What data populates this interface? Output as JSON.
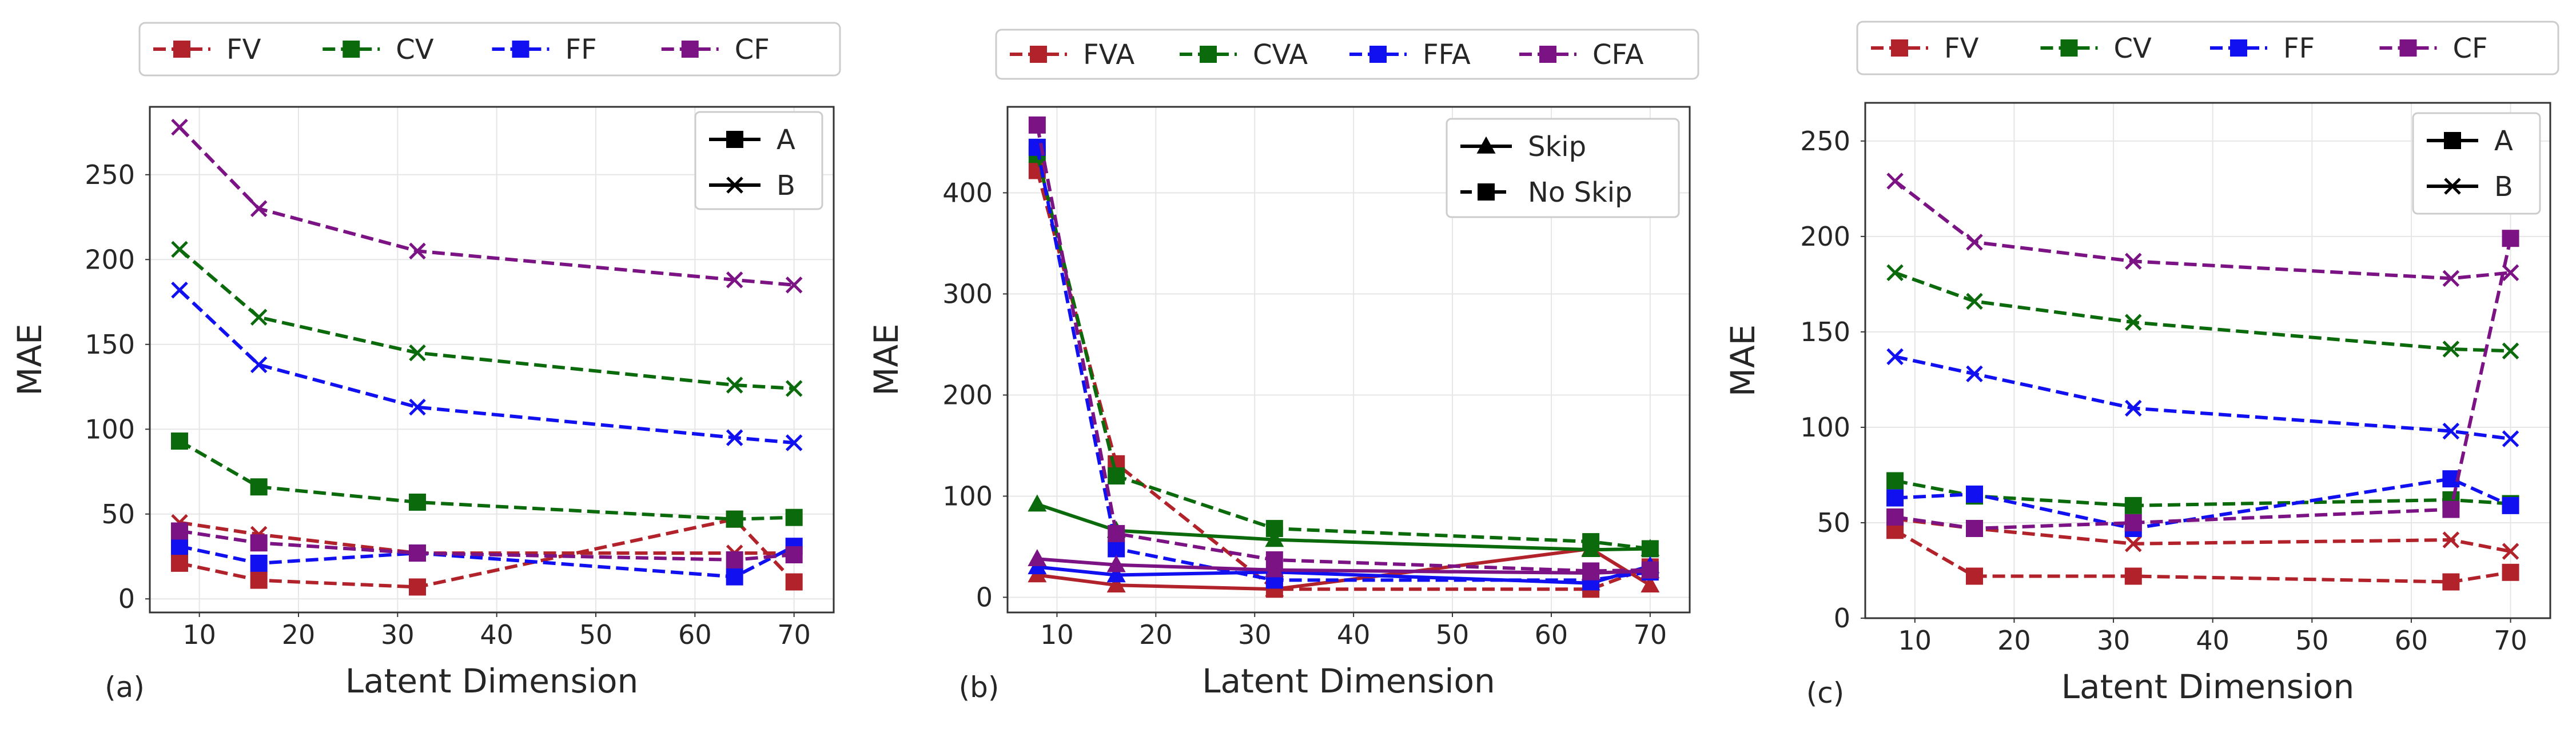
{
  "colors": {
    "FV": "#b2222a",
    "CV": "#0b6a0b",
    "FF": "#1010f0",
    "CF": "#7b1385",
    "frame": "#333333",
    "grid": "#e6e6e6",
    "text": "#262626"
  },
  "chart_data": [
    {
      "type": "line",
      "panel_label": "(a)",
      "xlabel": "Latent Dimension",
      "ylabel": "MAE",
      "xlim": [
        5,
        74
      ],
      "ylim": [
        -8,
        290
      ],
      "xticks": [
        10,
        20,
        30,
        40,
        50,
        60,
        70
      ],
      "yticks": [
        0,
        50,
        100,
        150,
        200,
        250
      ],
      "grid": true,
      "top_legend": [
        {
          "label": "FV",
          "color_key": "FV"
        },
        {
          "label": "CV",
          "color_key": "CV"
        },
        {
          "label": "FF",
          "color_key": "FF"
        },
        {
          "label": "CF",
          "color_key": "CF"
        }
      ],
      "style_legend": {
        "position": "upper-right",
        "entries": [
          {
            "label": "A",
            "marker": "square"
          },
          {
            "label": "B",
            "marker": "x"
          }
        ]
      },
      "x": [
        8,
        16,
        32,
        64,
        70
      ],
      "series": [
        {
          "group": "FV",
          "variant": "A",
          "color_key": "FV",
          "marker": "square",
          "dashed": true,
          "values": [
            21,
            11,
            7,
            47,
            10
          ]
        },
        {
          "group": "FV",
          "variant": "B",
          "color_key": "FV",
          "marker": "x",
          "dashed": true,
          "values": [
            45,
            38,
            27,
            27,
            27
          ]
        },
        {
          "group": "CV",
          "variant": "A",
          "color_key": "CV",
          "marker": "square",
          "dashed": true,
          "values": [
            93,
            66,
            57,
            47,
            48
          ]
        },
        {
          "group": "CV",
          "variant": "B",
          "color_key": "CV",
          "marker": "x",
          "dashed": true,
          "values": [
            206,
            166,
            145,
            126,
            124
          ]
        },
        {
          "group": "FF",
          "variant": "A",
          "color_key": "FF",
          "marker": "square",
          "dashed": true,
          "values": [
            31,
            21,
            27,
            13,
            31
          ]
        },
        {
          "group": "FF",
          "variant": "B",
          "color_key": "FF",
          "marker": "x",
          "dashed": true,
          "values": [
            182,
            138,
            113,
            95,
            92
          ]
        },
        {
          "group": "CF",
          "variant": "A",
          "color_key": "CF",
          "marker": "square",
          "dashed": true,
          "values": [
            40,
            33,
            27,
            23,
            26
          ]
        },
        {
          "group": "CF",
          "variant": "B",
          "color_key": "CF",
          "marker": "x",
          "dashed": true,
          "values": [
            278,
            230,
            205,
            188,
            185
          ]
        }
      ]
    },
    {
      "type": "line",
      "panel_label": "(b)",
      "xlabel": "Latent Dimension",
      "ylabel": "MAE",
      "xlim": [
        5,
        74
      ],
      "ylim": [
        -15,
        485
      ],
      "xticks": [
        10,
        20,
        30,
        40,
        50,
        60,
        70
      ],
      "yticks": [
        0,
        100,
        200,
        300,
        400
      ],
      "grid": true,
      "top_legend": [
        {
          "label": "FVA",
          "color_key": "FV"
        },
        {
          "label": "CVA",
          "color_key": "CV"
        },
        {
          "label": "FFA",
          "color_key": "FF"
        },
        {
          "label": "CFA",
          "color_key": "CF"
        }
      ],
      "style_legend": {
        "position": "upper-right",
        "entries": [
          {
            "label": "Skip",
            "marker": "triangle",
            "dashed": false
          },
          {
            "label": "No Skip",
            "marker": "square",
            "dashed": true
          }
        ]
      },
      "x": [
        8,
        16,
        32,
        64,
        70
      ],
      "series": [
        {
          "group": "FVA",
          "variant": "Skip",
          "color_key": "FV",
          "marker": "triangle",
          "dashed": false,
          "values": [
            22,
            12,
            8,
            48,
            12
          ]
        },
        {
          "group": "FVA",
          "variant": "No Skip",
          "color_key": "FV",
          "marker": "square",
          "dashed": true,
          "values": [
            422,
            132,
            8,
            8,
            30
          ]
        },
        {
          "group": "CVA",
          "variant": "Skip",
          "color_key": "CV",
          "marker": "triangle",
          "dashed": false,
          "values": [
            92,
            66,
            57,
            47,
            48
          ]
        },
        {
          "group": "CVA",
          "variant": "No Skip",
          "color_key": "CV",
          "marker": "square",
          "dashed": true,
          "values": [
            438,
            120,
            68,
            55,
            48
          ]
        },
        {
          "group": "FFA",
          "variant": "Skip",
          "color_key": "FF",
          "marker": "triangle",
          "dashed": false,
          "values": [
            30,
            22,
            25,
            14,
            31
          ]
        },
        {
          "group": "FFA",
          "variant": "No Skip",
          "color_key": "FF",
          "marker": "square",
          "dashed": true,
          "values": [
            445,
            48,
            17,
            17,
            25
          ]
        },
        {
          "group": "CFA",
          "variant": "Skip",
          "color_key": "CF",
          "marker": "triangle",
          "dashed": false,
          "values": [
            38,
            32,
            27,
            24,
            26
          ]
        },
        {
          "group": "CFA",
          "variant": "No Skip",
          "color_key": "CF",
          "marker": "square",
          "dashed": true,
          "values": [
            467,
            63,
            37,
            26,
            27
          ]
        }
      ]
    },
    {
      "type": "line",
      "panel_label": "(c)",
      "xlabel": "Latent Dimension",
      "ylabel": "MAE",
      "xlim": [
        5,
        74
      ],
      "ylim": [
        0,
        270
      ],
      "xticks": [
        10,
        20,
        30,
        40,
        50,
        60,
        70
      ],
      "yticks": [
        0,
        50,
        100,
        150,
        200,
        250
      ],
      "grid": true,
      "top_legend": [
        {
          "label": "FV",
          "color_key": "FV"
        },
        {
          "label": "CV",
          "color_key": "CV"
        },
        {
          "label": "FF",
          "color_key": "FF"
        },
        {
          "label": "CF",
          "color_key": "CF"
        }
      ],
      "style_legend": {
        "position": "upper-right",
        "entries": [
          {
            "label": "A",
            "marker": "square"
          },
          {
            "label": "B",
            "marker": "x"
          }
        ]
      },
      "x": [
        8,
        16,
        32,
        64,
        70
      ],
      "series": [
        {
          "group": "FV",
          "variant": "A",
          "color_key": "FV",
          "marker": "square",
          "dashed": true,
          "values": [
            46,
            22,
            22,
            19,
            24
          ]
        },
        {
          "group": "FV",
          "variant": "B",
          "color_key": "FV",
          "marker": "x",
          "dashed": true,
          "values": [
            52,
            47,
            39,
            41,
            35
          ]
        },
        {
          "group": "CV",
          "variant": "A",
          "color_key": "CV",
          "marker": "square",
          "dashed": true,
          "values": [
            72,
            64,
            59,
            62,
            60
          ]
        },
        {
          "group": "CV",
          "variant": "B",
          "color_key": "CV",
          "marker": "x",
          "dashed": true,
          "values": [
            181,
            166,
            155,
            141,
            140
          ]
        },
        {
          "group": "FF",
          "variant": "A",
          "color_key": "FF",
          "marker": "square",
          "dashed": true,
          "values": [
            63,
            65,
            47,
            73,
            59
          ]
        },
        {
          "group": "FF",
          "variant": "B",
          "color_key": "FF",
          "marker": "x",
          "dashed": true,
          "values": [
            137,
            128,
            110,
            98,
            94
          ]
        },
        {
          "group": "CF",
          "variant": "A",
          "color_key": "CF",
          "marker": "square",
          "dashed": true,
          "values": [
            53,
            47,
            50,
            57,
            199
          ]
        },
        {
          "group": "CF",
          "variant": "B",
          "color_key": "CF",
          "marker": "x",
          "dashed": true,
          "values": [
            229,
            197,
            187,
            178,
            181
          ]
        }
      ]
    }
  ]
}
